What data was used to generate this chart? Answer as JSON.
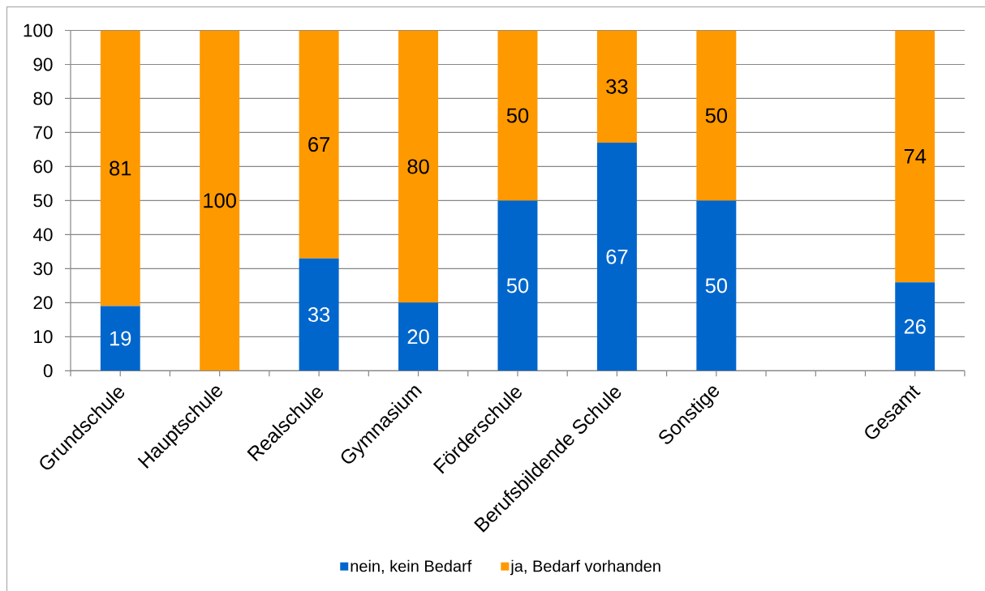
{
  "chart_data": {
    "type": "bar",
    "stacked": true,
    "categories": [
      "Grundschule",
      "Hauptschule",
      "Realschule",
      "Gymnasium",
      "Förderschule",
      "Berufsbildende Schule",
      "Sonstige",
      null,
      "Gesamt"
    ],
    "series": [
      {
        "name": "nein, kein Bedarf",
        "color": "#0066cc",
        "values": [
          19,
          0,
          33,
          20,
          50,
          67,
          50,
          null,
          26
        ],
        "value_labels": [
          "19",
          null,
          "33",
          "20",
          "50",
          "67",
          "50",
          null,
          "26"
        ]
      },
      {
        "name": "ja, Bedarf vorhanden",
        "color": "#ff9900",
        "values": [
          81,
          100,
          67,
          80,
          50,
          33,
          50,
          null,
          74
        ],
        "value_labels": [
          "81",
          "100",
          "67",
          "80",
          "50",
          "33",
          "50",
          null,
          "74"
        ]
      }
    ],
    "ylim": [
      0,
      100
    ],
    "yticks": [
      0,
      10,
      20,
      30,
      40,
      50,
      60,
      70,
      80,
      90,
      100
    ],
    "grid": "y",
    "legend": "bottom"
  }
}
